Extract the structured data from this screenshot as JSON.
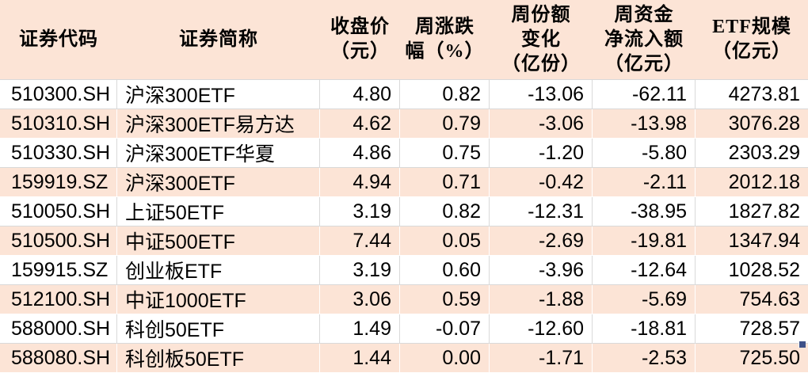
{
  "chart_data": {
    "type": "table",
    "columns": [
      {
        "key": "code",
        "label": "证券代码"
      },
      {
        "key": "name",
        "label": "证券简称"
      },
      {
        "key": "close_price",
        "label": "收盘价\n（元）"
      },
      {
        "key": "weekly_change_pct",
        "label": "周涨跌\n幅（%）"
      },
      {
        "key": "weekly_share_change",
        "label": "周份额\n变化\n（亿份）"
      },
      {
        "key": "weekly_net_inflow",
        "label": "周资金\n净流入额\n（亿元）"
      },
      {
        "key": "etf_scale",
        "label": "ETF规模\n（亿元）"
      }
    ],
    "rows": [
      [
        "510300.SH",
        "沪深300ETF",
        "4.80",
        "0.82",
        "-13.06",
        "-62.11",
        "4273.81"
      ],
      [
        "510310.SH",
        "沪深300ETF易方达",
        "4.62",
        "0.79",
        "-3.06",
        "-13.98",
        "3076.28"
      ],
      [
        "510330.SH",
        "沪深300ETF华夏",
        "4.86",
        "0.75",
        "-1.20",
        "-5.80",
        "2303.29"
      ],
      [
        "159919.SZ",
        "沪深300ETF",
        "4.94",
        "0.71",
        "-0.42",
        "-2.11",
        "2012.18"
      ],
      [
        "510050.SH",
        "上证50ETF",
        "3.19",
        "0.82",
        "-12.31",
        "-38.95",
        "1827.82"
      ],
      [
        "510500.SH",
        "中证500ETF",
        "7.44",
        "0.05",
        "-2.69",
        "-19.81",
        "1347.94"
      ],
      [
        "159915.SZ",
        "创业板ETF",
        "3.19",
        "0.60",
        "-3.96",
        "-12.64",
        "1028.52"
      ],
      [
        "512100.SH",
        "中证1000ETF",
        "3.06",
        "0.59",
        "-1.88",
        "-5.69",
        "754.63"
      ],
      [
        "588000.SH",
        "科创50ETF",
        "1.49",
        "-0.07",
        "-12.60",
        "-18.81",
        "728.57"
      ],
      [
        "588080.SH",
        "科创板50ETF",
        "1.44",
        "0.00",
        "-1.71",
        "-2.53",
        "725.50"
      ]
    ],
    "layout_hints": {
      "header_position": "top",
      "row_striping": "alternating",
      "grid": "on"
    }
  },
  "colors": {
    "header_bg": "#fce4d6",
    "row_alt_bg": "#fce4d6",
    "row_bg": "#ffffff",
    "grid_line": "#d9d9d9",
    "text": "#000000",
    "fill_handle": "#3f5289"
  }
}
